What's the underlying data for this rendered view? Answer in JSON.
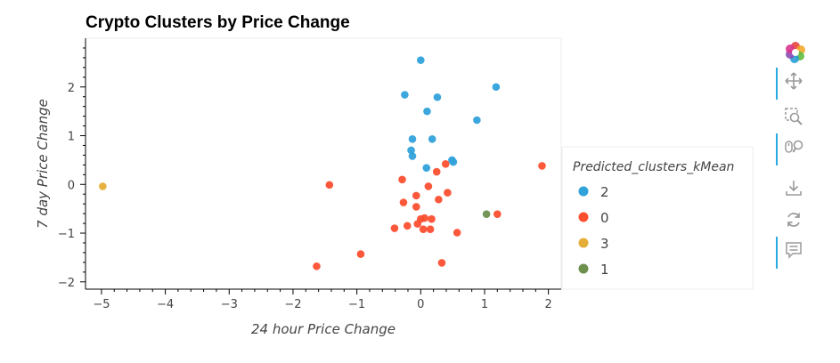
{
  "chart_data": {
    "type": "scatter",
    "title": "Crypto Clusters by Price Change",
    "xlabel": "24 hour Price Change",
    "ylabel": "7 day Price Change",
    "xlim": [
      -5.25,
      2.2
    ],
    "ylim": [
      -2.15,
      3.0
    ],
    "x_ticks": [
      -5,
      -4,
      -3,
      -2,
      -1,
      0,
      1,
      2
    ],
    "y_ticks": [
      -2,
      -1,
      0,
      1,
      2
    ],
    "legend_title": "Predicted_clusters_kMean",
    "legend_position": "right",
    "series": [
      {
        "name": "2",
        "color": "#30a2da",
        "points": [
          [
            0.0,
            2.55
          ],
          [
            -0.25,
            1.84
          ],
          [
            0.26,
            1.79
          ],
          [
            1.18,
            2.0
          ],
          [
            0.1,
            1.5
          ],
          [
            0.88,
            1.32
          ],
          [
            -0.13,
            0.93
          ],
          [
            0.18,
            0.93
          ],
          [
            -0.15,
            0.7
          ],
          [
            -0.13,
            0.58
          ],
          [
            0.49,
            0.5
          ],
          [
            0.51,
            0.46
          ],
          [
            0.09,
            0.34
          ]
        ]
      },
      {
        "name": "0",
        "color": "#fc4f30",
        "points": [
          [
            -1.43,
            -0.01
          ],
          [
            1.9,
            0.38
          ],
          [
            0.39,
            0.42
          ],
          [
            -0.29,
            0.1
          ],
          [
            0.25,
            0.26
          ],
          [
            0.12,
            -0.04
          ],
          [
            -0.07,
            -0.23
          ],
          [
            0.42,
            -0.17
          ],
          [
            0.28,
            -0.31
          ],
          [
            -0.27,
            -0.37
          ],
          [
            -0.07,
            -0.46
          ],
          [
            0.06,
            -0.69
          ],
          [
            0.0,
            -0.71
          ],
          [
            0.17,
            -0.71
          ],
          [
            1.2,
            -0.61
          ],
          [
            -0.05,
            -0.81
          ],
          [
            -0.21,
            -0.85
          ],
          [
            -0.41,
            -0.9
          ],
          [
            0.04,
            -0.92
          ],
          [
            0.15,
            -0.92
          ],
          [
            0.57,
            -0.99
          ],
          [
            -0.94,
            -1.43
          ],
          [
            -1.63,
            -1.68
          ],
          [
            0.33,
            -1.61
          ]
        ]
      },
      {
        "name": "3",
        "color": "#e5ae38",
        "points": [
          [
            -4.98,
            -0.04
          ]
        ]
      },
      {
        "name": "1",
        "color": "#6d904f",
        "points": [
          [
            1.03,
            -0.61
          ]
        ]
      }
    ]
  },
  "toolbar": {
    "logo": "bokeh-logo-icon",
    "tools": [
      "pan-icon",
      "box-zoom-icon",
      "wheel-zoom-icon",
      "save-icon",
      "reset-icon",
      "hover-icon"
    ]
  }
}
